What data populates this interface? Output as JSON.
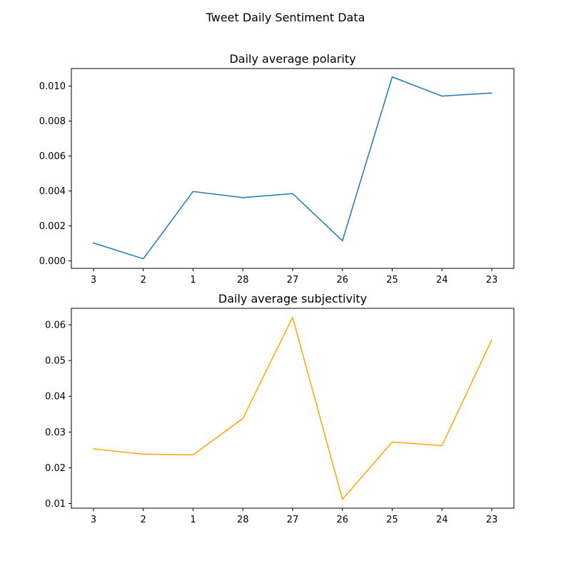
{
  "figure": {
    "suptitle": "Tweet Daily Sentiment Data"
  },
  "chart_data": [
    {
      "type": "line",
      "title": "Daily average polarity",
      "xlabel": "",
      "ylabel": "",
      "categories": [
        "3",
        "2",
        "1",
        "28",
        "27",
        "26",
        "25",
        "24",
        "23"
      ],
      "series": [
        {
          "color": "#1f77b4",
          "values": [
            0.00102,
            0.00012,
            0.00397,
            0.00362,
            0.00385,
            0.00115,
            0.01053,
            0.00943,
            0.00961
          ]
        }
      ],
      "ylim": [
        -0.00043,
        0.01101
      ],
      "yticks": [
        0.0,
        0.002,
        0.004,
        0.006,
        0.008,
        0.01
      ],
      "ytick_labels": [
        "0.000",
        "0.002",
        "0.004",
        "0.006",
        "0.008",
        "0.010"
      ],
      "grid": false
    },
    {
      "type": "line",
      "title": "Daily average subjectivity",
      "xlabel": "",
      "ylabel": "",
      "categories": [
        "3",
        "2",
        "1",
        "28",
        "27",
        "26",
        "25",
        "24",
        "23"
      ],
      "series": [
        {
          "color": "#ffa500",
          "values": [
            0.0253,
            0.0238,
            0.0236,
            0.0338,
            0.0621,
            0.0112,
            0.0272,
            0.0262,
            0.0558
          ]
        }
      ],
      "ylim": [
        0.0087,
        0.0646
      ],
      "yticks": [
        0.01,
        0.02,
        0.03,
        0.04,
        0.05,
        0.06
      ],
      "ytick_labels": [
        "0.01",
        "0.02",
        "0.03",
        "0.04",
        "0.05",
        "0.06"
      ],
      "grid": false
    }
  ]
}
